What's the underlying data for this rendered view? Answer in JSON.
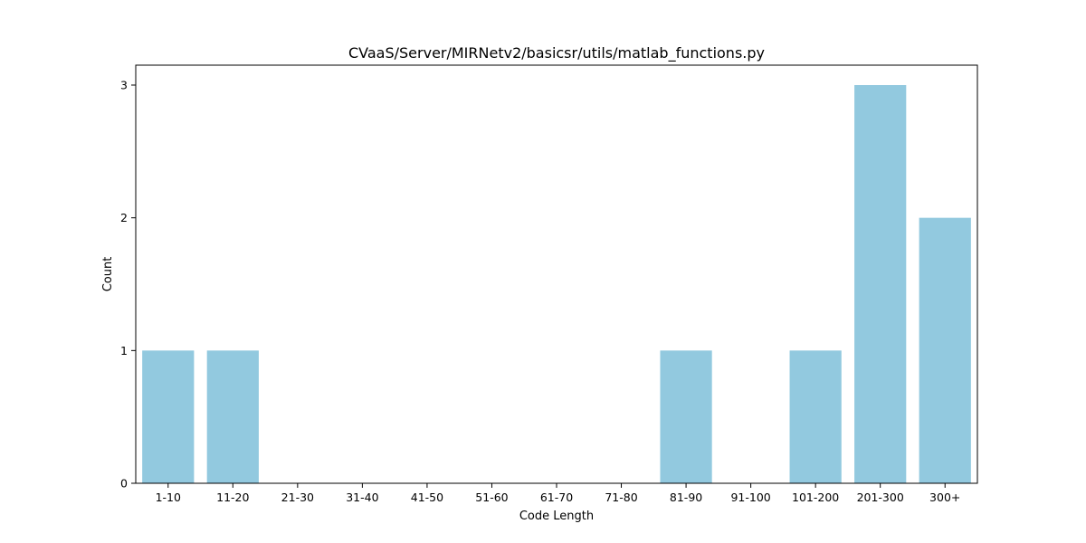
{
  "chart_data": {
    "type": "bar",
    "title": "CVaaS/Server/MIRNetv2/basicsr/utils/matlab_functions.py",
    "xlabel": "Code Length",
    "ylabel": "Count",
    "categories": [
      "1-10",
      "11-20",
      "21-30",
      "31-40",
      "41-50",
      "51-60",
      "61-70",
      "71-80",
      "81-90",
      "91-100",
      "101-200",
      "201-300",
      "300+"
    ],
    "values": [
      1,
      1,
      0,
      0,
      0,
      0,
      0,
      0,
      1,
      0,
      1,
      3,
      2
    ],
    "ylim": [
      0,
      3.15
    ],
    "yticks": [
      "0",
      "1",
      "2",
      "3"
    ],
    "bar_color": "#92c9df",
    "grid": false,
    "legend": "none"
  }
}
